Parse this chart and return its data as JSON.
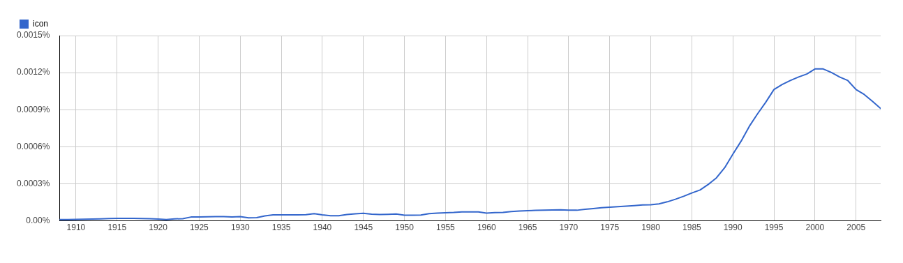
{
  "chart_data": {
    "type": "line",
    "legend": "top left",
    "grid": true,
    "marker": "none",
    "line_style": "solid",
    "x": [
      1908,
      1909,
      1910,
      1911,
      1912,
      1913,
      1914,
      1915,
      1916,
      1917,
      1918,
      1919,
      1920,
      1921,
      1922,
      1923,
      1924,
      1925,
      1926,
      1927,
      1928,
      1929,
      1930,
      1931,
      1932,
      1933,
      1934,
      1935,
      1936,
      1937,
      1938,
      1939,
      1940,
      1941,
      1942,
      1943,
      1944,
      1945,
      1946,
      1947,
      1948,
      1949,
      1950,
      1951,
      1952,
      1953,
      1954,
      1955,
      1956,
      1957,
      1958,
      1959,
      1960,
      1961,
      1962,
      1963,
      1964,
      1965,
      1966,
      1967,
      1968,
      1969,
      1970,
      1971,
      1972,
      1973,
      1974,
      1975,
      1976,
      1977,
      1978,
      1979,
      1980,
      1981,
      1982,
      1983,
      1984,
      1985,
      1986,
      1987,
      1988,
      1989,
      1990,
      1991,
      1992,
      1993,
      1994,
      1995,
      1996,
      1997,
      1998,
      1999,
      2000,
      2001,
      2002,
      2003,
      2004,
      2005,
      2006,
      2007,
      2008
    ],
    "series": [
      {
        "name": "icon",
        "color": "#3366cc",
        "values": [
          1e-05,
          1.1e-05,
          1.2e-05,
          1.3e-05,
          1.4e-05,
          1.6e-05,
          1.9e-05,
          2e-05,
          2e-05,
          2e-05,
          1.9e-05,
          1.8e-05,
          1.5e-05,
          1.1e-05,
          1.6e-05,
          1.8e-05,
          3.1e-05,
          3.2e-05,
          3.3e-05,
          3.4e-05,
          3.5e-05,
          3.2e-05,
          3.4e-05,
          2.4e-05,
          2.6e-05,
          4e-05,
          4.8e-05,
          4.8e-05,
          4.8e-05,
          4.8e-05,
          5e-05,
          5.8e-05,
          4.9e-05,
          4.2e-05,
          4.2e-05,
          5.2e-05,
          5.7e-05,
          6.1e-05,
          5.4e-05,
          5.2e-05,
          5.3e-05,
          5.5e-05,
          4.6e-05,
          4.6e-05,
          4.7e-05,
          5.9e-05,
          6.2e-05,
          6.5e-05,
          6.8e-05,
          7.3e-05,
          7.3e-05,
          7.3e-05,
          6.3e-05,
          6.7e-05,
          6.8e-05,
          7.6e-05,
          8e-05,
          8.2e-05,
          8.5e-05,
          8.6e-05,
          8.8e-05,
          9e-05,
          8.7e-05,
          8.6e-05,
          9.4e-05,
          0.0001,
          0.000106,
          0.000111,
          0.000115,
          0.000119,
          0.000124,
          0.000129,
          0.000131,
          0.000138,
          0.000154,
          0.000175,
          0.000199,
          0.000226,
          0.00025,
          0.000295,
          0.000348,
          0.00043,
          0.00054,
          0.000645,
          0.000765,
          0.000866,
          0.00096,
          0.001063,
          0.001104,
          0.001136,
          0.001165,
          0.001189,
          0.00123,
          0.00123,
          0.001201,
          0.001165,
          0.001136,
          0.001063,
          0.001023,
          0.000968,
          0.00091
        ]
      }
    ],
    "xlim": [
      1908,
      2008
    ],
    "xticks": [
      1910,
      1915,
      1920,
      1925,
      1930,
      1935,
      1940,
      1945,
      1950,
      1955,
      1960,
      1965,
      1970,
      1975,
      1980,
      1985,
      1990,
      1995,
      2000,
      2005
    ],
    "ylim": [
      0,
      0.0015
    ],
    "yticks": [
      {
        "value": 0,
        "label": "0.00%"
      },
      {
        "value": 0.0003,
        "label": "0.0003%"
      },
      {
        "value": 0.0006,
        "label": "0.0006%"
      },
      {
        "value": 0.0009,
        "label": "0.0009%"
      },
      {
        "value": 0.0012,
        "label": "0.0012%"
      },
      {
        "value": 0.0015,
        "label": "0.0015%"
      }
    ]
  }
}
